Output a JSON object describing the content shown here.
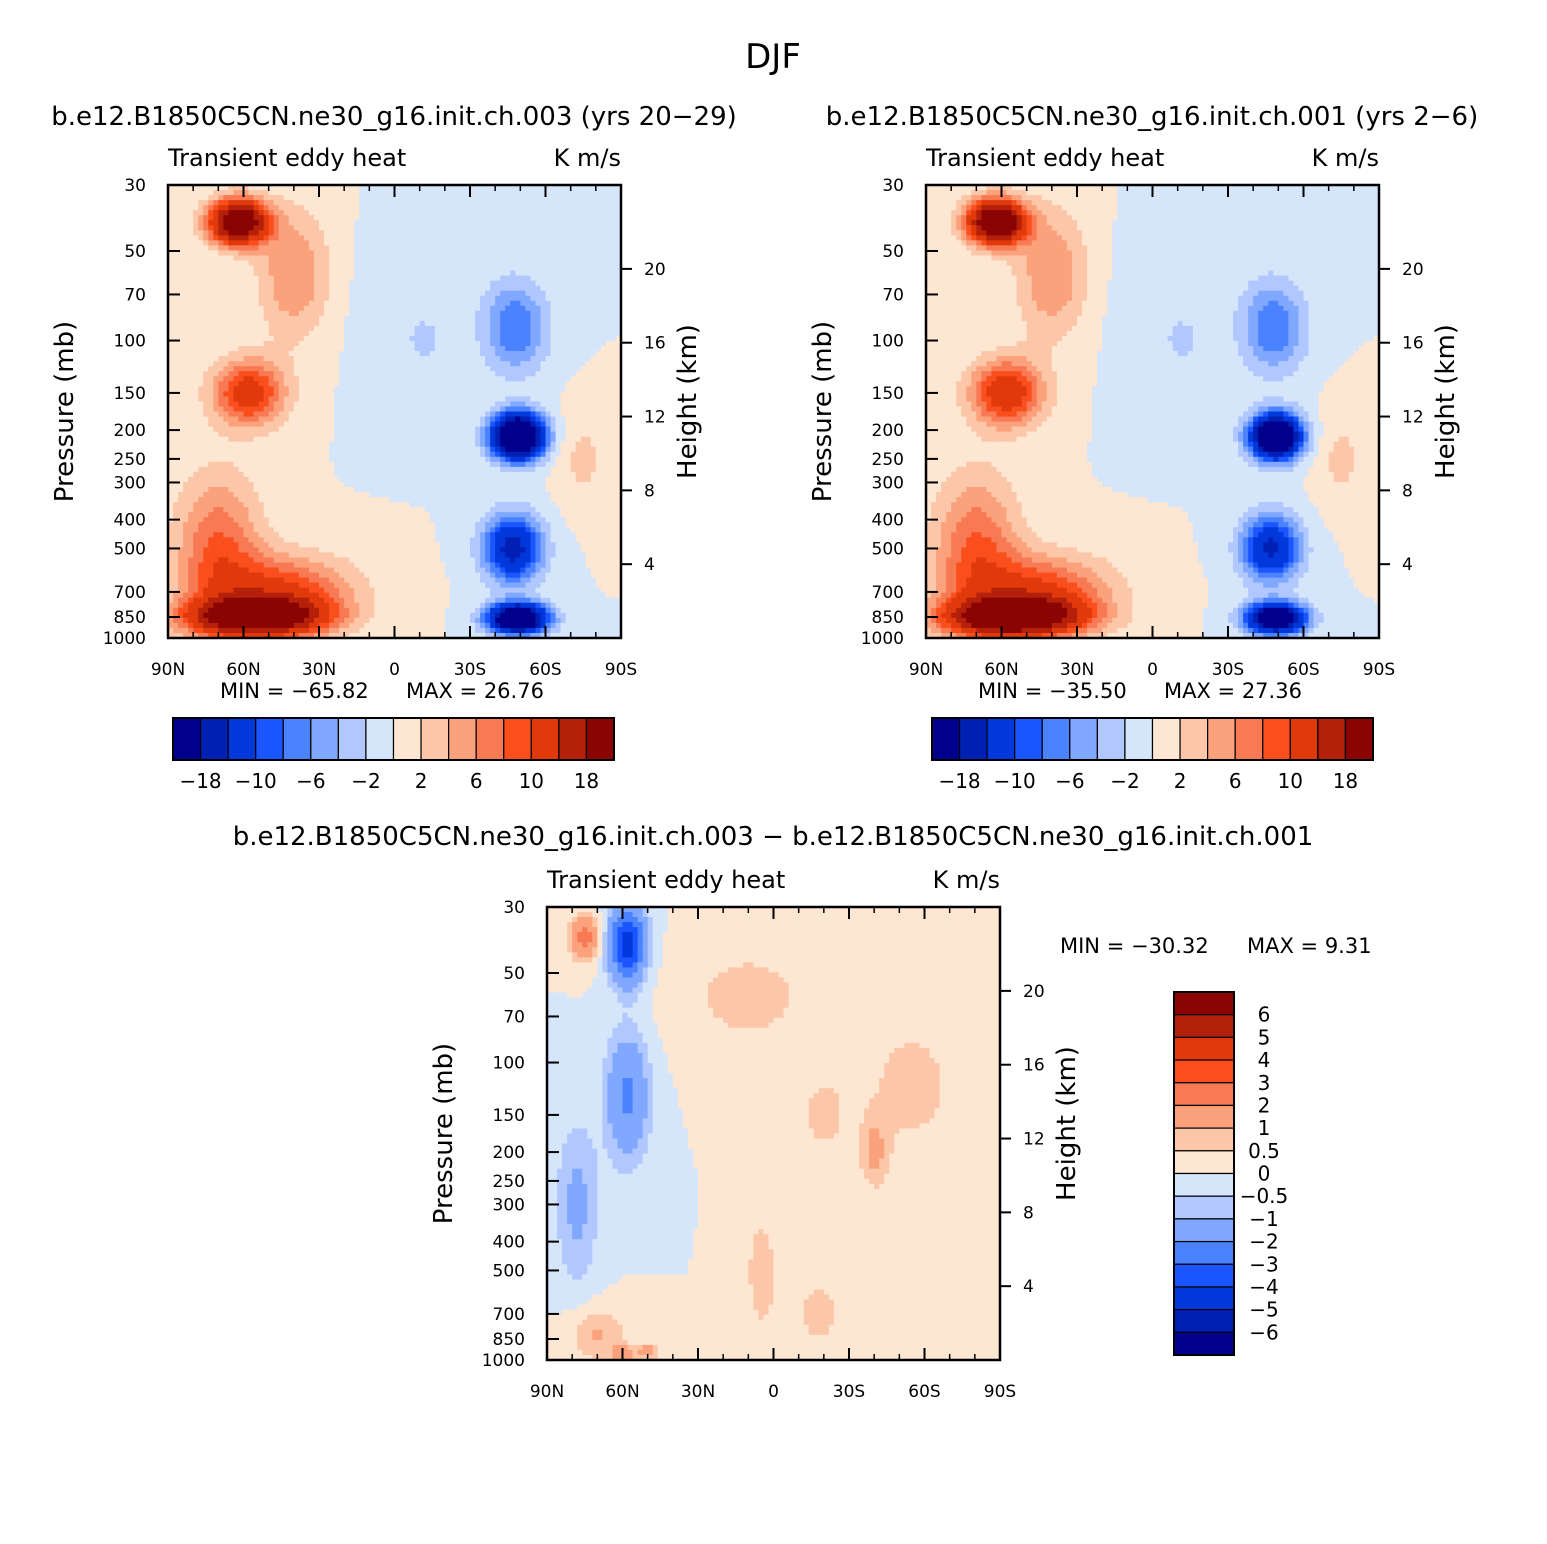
{
  "season": "DJF",
  "palettes": {
    "abs": [
      "#00008c",
      "#0020b4",
      "#0038dc",
      "#1a55ff",
      "#4a82ff",
      "#80a8ff",
      "#b0c8ff",
      "#d6e6fa",
      "#fde6d2",
      "#fcc7a8",
      "#fba27c",
      "#f87a54",
      "#fa4e1c",
      "#e03a0c",
      "#b4200a",
      "#8a0404"
    ],
    "diff": [
      "#00008c",
      "#0020b4",
      "#0038dc",
      "#1a55ff",
      "#4a82ff",
      "#80a8ff",
      "#b0c8ff",
      "#d6e6fa",
      "#fde6d2",
      "#fcc7a8",
      "#fba27c",
      "#f87a54",
      "#fa4e1c",
      "#e03a0c",
      "#b4200a",
      "#8a0404"
    ]
  },
  "chart_data": [
    {
      "id": "case",
      "type": "heatmap",
      "title": "b.e12.B1850C5CN.ne30_g16.init.ch.003 (yrs 20−29)",
      "left_label": "Transient  eddy  heat",
      "right_label": "K  m/s",
      "ylabel": "Pressure  (mb)",
      "ylabel_right": "Height  (km)",
      "xticks": [
        "90N",
        "60N",
        "30N",
        "0",
        "30S",
        "60S",
        "90S"
      ],
      "yticks": [
        30,
        50,
        70,
        100,
        150,
        200,
        250,
        300,
        400,
        500,
        700,
        850,
        1000
      ],
      "height_ticks": [
        20,
        16,
        12,
        8,
        4
      ],
      "min_label": "MIN  =  −65.82",
      "max_label": "MAX  =    26.76",
      "levels": [
        -18,
        -14,
        -10,
        -8,
        -6,
        -4,
        -2,
        0,
        2,
        4,
        6,
        8,
        10,
        14,
        18
      ],
      "colorbar_labels": [
        "−18",
        "−10",
        "−6",
        "−2",
        "2",
        "6",
        "10",
        "18"
      ],
      "features": [
        {
          "lat": 62,
          "p": 40,
          "amp": 26,
          "slat": 8,
          "sz": 0.12
        },
        {
          "lat": 58,
          "p": 150,
          "amp": 12,
          "slat": 10,
          "sz": 0.18
        },
        {
          "lat": 55,
          "p": 850,
          "amp": 24,
          "slat": 18,
          "sz": 0.1
        },
        {
          "lat": 45,
          "p": 700,
          "amp": 10,
          "slat": 20,
          "sz": 0.2
        },
        {
          "lat": 70,
          "p": 500,
          "amp": 8,
          "slat": 12,
          "sz": 0.4
        },
        {
          "lat": 40,
          "p": 60,
          "amp": 6,
          "slat": 10,
          "sz": 0.35
        },
        {
          "lat": -49,
          "p": 210,
          "amp": -34,
          "slat": 7,
          "sz": 0.12
        },
        {
          "lat": -49,
          "p": 860,
          "amp": -30,
          "slat": 8,
          "sz": 0.08
        },
        {
          "lat": -47,
          "p": 500,
          "amp": -16,
          "slat": 8,
          "sz": 0.18
        },
        {
          "lat": -48,
          "p": 90,
          "amp": -8,
          "slat": 9,
          "sz": 0.25
        },
        {
          "lat": -75,
          "p": 250,
          "amp": 2.6,
          "slat": 7,
          "sz": 0.25
        },
        {
          "lat": -5,
          "p": 80,
          "amp": -1.5,
          "slat": 15,
          "sz": 0.4
        },
        {
          "lat": -12,
          "p": 100,
          "amp": -3,
          "slat": 3,
          "sz": 0.08
        }
      ]
    },
    {
      "id": "control",
      "type": "heatmap",
      "title": "b.e12.B1850C5CN.ne30_g16.init.ch.001 (yrs 2−6)",
      "left_label": "Transient  eddy  heat",
      "right_label": "K  m/s",
      "ylabel": "Pressure  (mb)",
      "ylabel_right": "Height  (km)",
      "xticks": [
        "90N",
        "60N",
        "30N",
        "0",
        "30S",
        "60S",
        "90S"
      ],
      "yticks": [
        30,
        50,
        70,
        100,
        150,
        200,
        250,
        300,
        400,
        500,
        700,
        850,
        1000
      ],
      "height_ticks": [
        20,
        16,
        12,
        8,
        4
      ],
      "min_label": "MIN  =  −35.50",
      "max_label": "MAX  =    27.36",
      "levels": [
        -18,
        -14,
        -10,
        -8,
        -6,
        -4,
        -2,
        0,
        2,
        4,
        6,
        8,
        10,
        14,
        18
      ],
      "colorbar_labels": [
        "−18",
        "−10",
        "−6",
        "−2",
        "2",
        "6",
        "10",
        "18"
      ],
      "features": [
        {
          "lat": 62,
          "p": 40,
          "amp": 27,
          "slat": 8,
          "sz": 0.12
        },
        {
          "lat": 58,
          "p": 150,
          "amp": 13,
          "slat": 10,
          "sz": 0.18
        },
        {
          "lat": 55,
          "p": 850,
          "amp": 25,
          "slat": 18,
          "sz": 0.1
        },
        {
          "lat": 45,
          "p": 700,
          "amp": 10,
          "slat": 20,
          "sz": 0.2
        },
        {
          "lat": 70,
          "p": 500,
          "amp": 8,
          "slat": 12,
          "sz": 0.4
        },
        {
          "lat": 40,
          "p": 60,
          "amp": 6,
          "slat": 10,
          "sz": 0.35
        },
        {
          "lat": -49,
          "p": 210,
          "amp": -30,
          "slat": 7,
          "sz": 0.12
        },
        {
          "lat": -49,
          "p": 860,
          "amp": -28,
          "slat": 8,
          "sz": 0.08
        },
        {
          "lat": -47,
          "p": 500,
          "amp": -15,
          "slat": 8,
          "sz": 0.18
        },
        {
          "lat": -48,
          "p": 90,
          "amp": -8,
          "slat": 9,
          "sz": 0.25
        },
        {
          "lat": -75,
          "p": 250,
          "amp": 2.6,
          "slat": 7,
          "sz": 0.25
        },
        {
          "lat": -5,
          "p": 80,
          "amp": -1.5,
          "slat": 15,
          "sz": 0.4
        },
        {
          "lat": -12,
          "p": 100,
          "amp": -3,
          "slat": 3,
          "sz": 0.08
        }
      ]
    },
    {
      "id": "difference",
      "type": "heatmap",
      "title": "b.e12.B1850C5CN.ne30_g16.init.ch.003 − b.e12.B1850C5CN.ne30_g16.init.ch.001",
      "left_label": "Transient  eddy  heat",
      "right_label": "K  m/s",
      "ylabel": "Pressure  (mb)",
      "ylabel_right": "Height  (km)",
      "xticks": [
        "90N",
        "60N",
        "30N",
        "0",
        "30S",
        "60S",
        "90S"
      ],
      "yticks": [
        30,
        50,
        70,
        100,
        150,
        200,
        250,
        300,
        400,
        500,
        700,
        850,
        1000
      ],
      "height_ticks": [
        20,
        16,
        12,
        8,
        4
      ],
      "min_label": "MIN  =  −30.32",
      "max_label": "MAX  =     9.31",
      "levels": [
        -6,
        -5,
        -4,
        -3,
        -2,
        -1,
        -0.5,
        0,
        0.5,
        1,
        2,
        3,
        4,
        5,
        6
      ],
      "colorbar_labels": [
        "6",
        "5",
        "4",
        "3",
        "2",
        "1",
        "0.5",
        "0",
        "−0.5",
        "−1",
        "−2",
        "−3",
        "−4",
        "−5",
        "−6"
      ],
      "features": [
        {
          "lat": 58,
          "p": 40,
          "amp": -4.5,
          "slat": 5,
          "sz": 0.2
        },
        {
          "lat": 58,
          "p": 130,
          "amp": -2.2,
          "slat": 6,
          "sz": 0.35
        },
        {
          "lat": 75,
          "p": 38,
          "amp": 2.4,
          "slat": 4,
          "sz": 0.12
        },
        {
          "lat": 78,
          "p": 300,
          "amp": -1.2,
          "slat": 6,
          "sz": 0.45
        },
        {
          "lat": 70,
          "p": 820,
          "amp": 1.1,
          "slat": 8,
          "sz": 0.15
        },
        {
          "lat": 60,
          "p": 960,
          "amp": 1.6,
          "slat": 3,
          "sz": 0.05
        },
        {
          "lat": 50,
          "p": 940,
          "amp": 1.4,
          "slat": 3,
          "sz": 0.05
        },
        {
          "lat": -40,
          "p": 200,
          "amp": 1.1,
          "slat": 4,
          "sz": 0.2
        },
        {
          "lat": -20,
          "p": 150,
          "amp": 0.8,
          "slat": 6,
          "sz": 0.2
        },
        {
          "lat": 10,
          "p": 60,
          "amp": 0.7,
          "slat": 20,
          "sz": 0.3
        },
        {
          "lat": -55,
          "p": 120,
          "amp": 0.7,
          "slat": 14,
          "sz": 0.4
        },
        {
          "lat": 5,
          "p": 500,
          "amp": 0.7,
          "slat": 5,
          "sz": 0.4
        },
        {
          "lat": -18,
          "p": 700,
          "amp": 0.6,
          "slat": 10,
          "sz": 0.3
        }
      ]
    }
  ]
}
